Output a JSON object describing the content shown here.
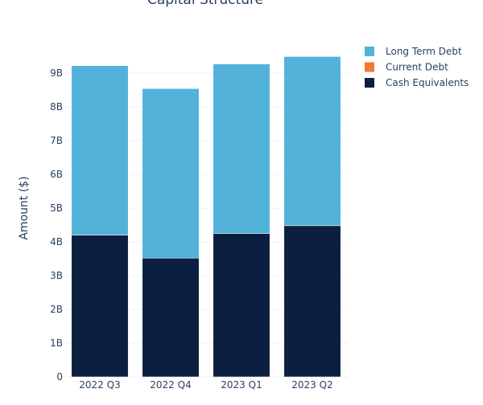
{
  "chart_data": {
    "type": "bar",
    "stacked": true,
    "title": "Capital Structure",
    "xlabel": "",
    "ylabel": "Amount ($)",
    "categories": [
      "2022 Q3",
      "2022 Q4",
      "2023 Q1",
      "2023 Q2"
    ],
    "ylim": [
      0,
      10000000000
    ],
    "yticks": [
      0,
      1000000000,
      2000000000,
      3000000000,
      4000000000,
      5000000000,
      6000000000,
      7000000000,
      8000000000,
      9000000000
    ],
    "yticklabels": [
      "0",
      "1B",
      "2B",
      "3B",
      "4B",
      "5B",
      "6B",
      "7B",
      "8B",
      "9B"
    ],
    "series": [
      {
        "name": "Cash Equivalents",
        "color": "#0d1f40",
        "values": [
          4200000000,
          3520000000,
          4250000000,
          4480000000
        ]
      },
      {
        "name": "Current Debt",
        "color": "#f07a33",
        "values": [
          0,
          0,
          0,
          0
        ]
      },
      {
        "name": "Long Term Debt",
        "color": "#52b2da",
        "values": [
          5020000000,
          5020000000,
          5020000000,
          5010000000
        ]
      }
    ],
    "legend": {
      "position": "top-right",
      "order": [
        "Long Term Debt",
        "Current Debt",
        "Cash Equivalents"
      ]
    },
    "grid": true
  }
}
